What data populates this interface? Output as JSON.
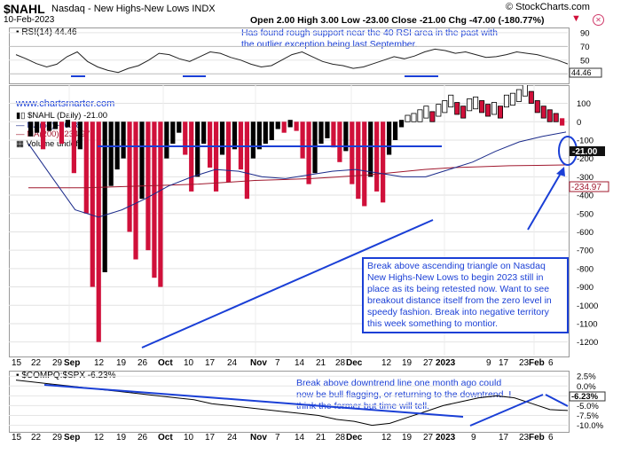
{
  "header": {
    "symbol": "$NAHL",
    "description": "Nasdaq - New Highs-New Lows INDX",
    "date": "10-Feb-2023",
    "quote": "Open 2.00  High 3.00  Low -23.00  Close -21.00  Chg -47.00 (-180.77%)",
    "quote_arrow": "▼",
    "copyright": "© StockCharts.com",
    "close_icon": "close-icon"
  },
  "rsi_panel": {
    "label": "RSI(14) 44.46",
    "note": "Has found rough support near the 40 RSI area in the past with\nthe outlier exception being last September.",
    "ticks": [
      "90",
      "70",
      "50",
      "30"
    ],
    "current_tag": "44.46",
    "colors": {
      "line": "#222222",
      "support": "#1a3fd6"
    }
  },
  "main_panel": {
    "watermark": "www.chartsmarter.com",
    "legend": [
      {
        "text": "$NAHL (Daily) -21.00",
        "color": "#000000"
      },
      {
        "text": "MA(50) -56.38",
        "color": "#1a2a8a"
      },
      {
        "text": "MA(200) -234.97",
        "color": "#a0182e"
      },
      {
        "text": "Volume undef",
        "color": "#000000"
      }
    ],
    "price_ticks": [
      "100",
      "0",
      "-100",
      "-200",
      "-300",
      "-400",
      "-500",
      "-600",
      "-700",
      "-800",
      "-900",
      "-1000",
      "-1100",
      "-1200"
    ],
    "tags": {
      "close": "-21.00",
      "ma200": "-234.97"
    },
    "annotation": "Break above ascending triangle on Nasdaq\nNew Highs-New Lows to begin 2023 still in\nplace as its being retested now. Want to see\nbreakout distance itself from the zero level in\nspeedy fashion. Break into negative territory\nthis week something to montior.",
    "colors": {
      "up": "#000000",
      "down": "#d0103a",
      "ma50": "#1a2a8a",
      "ma200": "#a0182e",
      "trendline": "#1a3fd6"
    }
  },
  "x_axis": {
    "labels": [
      "15",
      "22",
      "29",
      "Sep",
      "12",
      "19",
      "26",
      "Oct",
      "10",
      "17",
      "24",
      "Nov",
      "7",
      "14",
      "21",
      "28",
      "Dec",
      "12",
      "19",
      "27",
      "2023",
      "9",
      "17",
      "23",
      "Feb",
      "6"
    ],
    "bold": [
      "Sep",
      "Oct",
      "Nov",
      "Dec",
      "2023",
      "Feb"
    ]
  },
  "compare_panel": {
    "label": "$COMPQ:$SPX -6.23%",
    "note": "Break above downtrend line one month ago could\nnow be bull flagging, or returning to the downtrend. I\nthink the former but time will tell.",
    "ticks": [
      "2.5%",
      "0.0%",
      "-2.5%",
      "-5.0%",
      "-7.5%",
      "-10.0%"
    ],
    "current_tag": "-6.23%",
    "colors": {
      "line": "#000000",
      "trendline": "#1a3fd6"
    }
  },
  "chart_data": {
    "type": "bar",
    "title": "$NAHL Nasdaq - New Highs-New Lows INDX",
    "series": [
      {
        "name": "$NAHL (Daily)",
        "values": [
          -80,
          -60,
          -150,
          -50,
          -40,
          -120,
          -30,
          -280,
          -150,
          -500,
          -900,
          -1200,
          -820,
          -350,
          -260,
          -200,
          -600,
          -750,
          -420,
          -700,
          -850,
          -900,
          -200,
          -120,
          -60,
          -180,
          -380,
          -300,
          -120,
          -250,
          -380,
          -180,
          -330,
          -150,
          -260,
          -420,
          -200,
          -150,
          -120,
          -100,
          -40,
          -60,
          -30,
          -50,
          -200,
          -340,
          -280,
          -120,
          -90,
          -140,
          -220,
          -160,
          -340,
          -420,
          -460,
          -300,
          -380,
          -440,
          -180,
          -100,
          -30,
          10,
          20,
          40,
          60,
          30,
          70,
          90,
          120,
          80,
          60,
          100,
          110,
          90,
          70,
          80,
          60,
          120,
          130,
          150,
          180,
          140,
          90,
          60,
          40,
          20,
          -21
        ]
      },
      {
        "name": "MA(50)",
        "values": [
          -120,
          -300,
          -480,
          -520,
          -480,
          -420,
          -350,
          -300,
          -260,
          -270,
          -300,
          -310,
          -290,
          -270,
          -260,
          -280,
          -300,
          -300,
          -260,
          -220,
          -160,
          -110,
          -80,
          -56.38
        ]
      },
      {
        "name": "MA(200)",
        "values": [
          -360,
          -360,
          -360,
          -355,
          -350,
          -345,
          -340,
          -330,
          -320,
          -315,
          -310,
          -300,
          -290,
          -275,
          -260,
          -250,
          -245,
          -240,
          -238,
          -234.97
        ]
      }
    ],
    "rsi": {
      "name": "RSI(14)",
      "values": [
        58,
        52,
        45,
        40,
        44,
        55,
        62,
        48,
        40,
        35,
        32,
        38,
        42,
        50,
        60,
        58,
        52,
        48,
        55,
        62,
        60,
        54,
        50,
        44,
        40,
        42,
        50,
        58,
        62,
        55,
        48,
        44,
        42,
        38,
        40,
        45,
        50,
        55,
        52,
        56,
        62,
        66,
        64,
        60,
        62,
        58,
        54,
        55,
        58,
        62,
        60,
        58,
        54,
        50,
        44.46
      ],
      "ylim": [
        20,
        95
      ]
    },
    "ratio": {
      "name": "$COMPQ:$SPX",
      "values": [
        1.5,
        1.0,
        0.5,
        0.0,
        -0.5,
        -1.0,
        -1.5,
        -2.0,
        -2.5,
        -3.0,
        -3.5,
        -4.5,
        -5.0,
        -5.5,
        -6.0,
        -6.5,
        -7.0,
        -7.5,
        -8.5,
        -9.0,
        -10.0,
        -9.5,
        -8.0,
        -6.5,
        -5.0,
        -4.0,
        -3.0,
        -2.5,
        -3.0,
        -4.5,
        -6.0,
        -6.23
      ],
      "ylim": [
        -11,
        3
      ]
    },
    "ylim": [
      -1250,
      180
    ]
  }
}
